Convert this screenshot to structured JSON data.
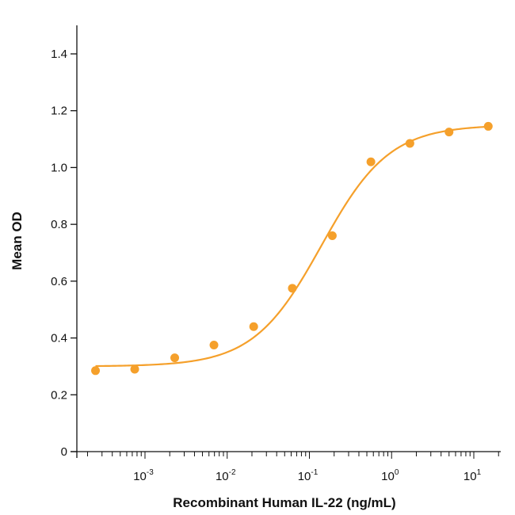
{
  "chart_data": {
    "type": "scatter",
    "xlabel": "Recombinant Human IL-22 (ng/mL)",
    "ylabel": "Mean OD",
    "xscale": "log",
    "xlim": [
      0.0002,
      20
    ],
    "ylim": [
      0,
      1.5
    ],
    "grid": false,
    "legend": "none",
    "yticks": [
      "0",
      "0.2",
      "0.4",
      "0.6",
      "0.8",
      "1.0",
      "1.2",
      "1.4"
    ],
    "xticks": [
      {
        "base": "10",
        "exp": "-3",
        "value": 0.001
      },
      {
        "base": "10",
        "exp": "-2",
        "value": 0.01
      },
      {
        "base": "10",
        "exp": "-1",
        "value": 0.1
      },
      {
        "base": "10",
        "exp": "0",
        "value": 1
      },
      {
        "base": "10",
        "exp": "1",
        "value": 10
      }
    ],
    "series": [
      {
        "points": [
          {
            "x": 0.00025,
            "y": 0.285
          },
          {
            "x": 0.00075,
            "y": 0.29
          },
          {
            "x": 0.0023,
            "y": 0.33
          },
          {
            "x": 0.0069,
            "y": 0.375
          },
          {
            "x": 0.021,
            "y": 0.44
          },
          {
            "x": 0.062,
            "y": 0.575
          },
          {
            "x": 0.19,
            "y": 0.76
          },
          {
            "x": 0.56,
            "y": 1.02
          },
          {
            "x": 1.67,
            "y": 1.085
          },
          {
            "x": 5.0,
            "y": 1.125
          },
          {
            "x": 15.0,
            "y": 1.145
          }
        ]
      }
    ],
    "fit_curve": {
      "bottom": 0.3,
      "top": 1.15,
      "ec50": 0.14,
      "hill": 1.05
    },
    "colors": {
      "series": "#f5a02b",
      "axis": "#111111"
    }
  }
}
